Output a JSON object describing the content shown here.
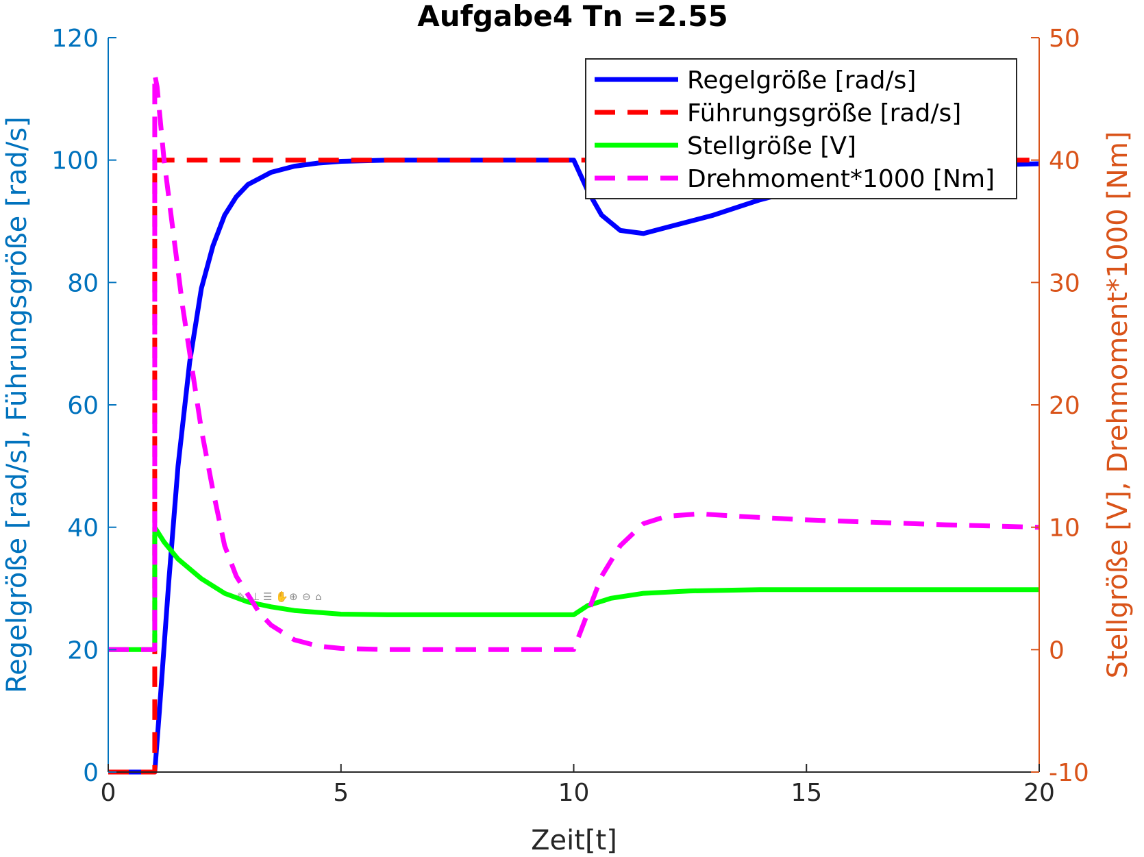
{
  "chart_data": {
    "type": "line",
    "title": "Aufgabe4 Tn =2.55",
    "xlabel": "Zeit[t]",
    "ylabel_left": "Regelgröße [rad/s], Führungsgröße [rad/s]",
    "ylabel_right": "Stellgröße [V], Drehmoment*1000 [Nm]",
    "xlim": [
      0,
      20
    ],
    "ylim_left": [
      0,
      120
    ],
    "ylim_right": [
      -10,
      50
    ],
    "x_ticks": [
      "0",
      "5",
      "10",
      "15",
      "20"
    ],
    "y_ticks_left": [
      "0",
      "20",
      "40",
      "60",
      "80",
      "100",
      "120"
    ],
    "y_ticks_right": [
      "-10",
      "0",
      "10",
      "20",
      "30",
      "40",
      "50"
    ],
    "grid": false,
    "legend_position": "top-right",
    "series": [
      {
        "name": "Regelgröße [rad/s]",
        "axis": "left",
        "color": "#0000FF",
        "style": "solid",
        "x": [
          0,
          1,
          1.1,
          1.3,
          1.5,
          1.75,
          2,
          2.25,
          2.5,
          2.75,
          3,
          3.5,
          4,
          4.5,
          5,
          6,
          7,
          8,
          9,
          10,
          10.3,
          10.6,
          11,
          11.5,
          12,
          13,
          14,
          15,
          16,
          17,
          18,
          19,
          20
        ],
        "y": [
          0,
          0,
          10,
          31,
          50,
          67,
          79,
          86,
          91,
          94,
          96,
          98,
          99,
          99.5,
          99.8,
          100,
          100,
          100,
          100,
          100,
          95,
          91,
          88.5,
          88,
          89,
          91,
          93.5,
          95.5,
          97,
          98,
          98.8,
          99.2,
          99.4
        ]
      },
      {
        "name": "Führungsgröße [rad/s]",
        "axis": "left",
        "color": "#FF0000",
        "style": "dashed",
        "x": [
          0,
          1,
          1,
          20
        ],
        "y": [
          0,
          0,
          100,
          100
        ]
      },
      {
        "name": "Stellgröße [V]",
        "axis": "right",
        "color": "#00FF00",
        "style": "solid",
        "x": [
          0,
          1,
          1,
          1.2,
          1.5,
          2,
          2.5,
          3,
          3.5,
          4,
          5,
          6,
          7,
          8,
          9,
          10,
          10.3,
          10.8,
          11.5,
          12.5,
          14,
          16,
          18,
          20
        ],
        "y": [
          0,
          0,
          10,
          8.8,
          7.4,
          5.8,
          4.6,
          3.9,
          3.5,
          3.2,
          2.9,
          2.85,
          2.85,
          2.85,
          2.85,
          2.85,
          3.6,
          4.2,
          4.6,
          4.8,
          4.9,
          4.9,
          4.9,
          4.9
        ]
      },
      {
        "name": "Drehmoment*1000 [Nm]",
        "axis": "right",
        "color": "#FF00FF",
        "style": "dashed",
        "x": [
          0,
          1,
          1,
          1.05,
          1.2,
          1.4,
          1.6,
          1.8,
          2,
          2.25,
          2.5,
          2.75,
          3,
          3.25,
          3.5,
          4,
          4.5,
          5,
          6,
          7,
          8,
          9,
          10,
          10.3,
          10.6,
          11,
          11.5,
          12,
          12.7,
          13.5,
          15,
          16.5,
          18,
          20
        ],
        "y": [
          0,
          0,
          47,
          46,
          40,
          34,
          28,
          23,
          18,
          13,
          8.5,
          6,
          4.5,
          3,
          2,
          0.8,
          0.3,
          0.1,
          0,
          0,
          0,
          0,
          0,
          3,
          6,
          8.5,
          10.3,
          10.9,
          11.1,
          10.9,
          10.6,
          10.4,
          10.2,
          10
        ]
      }
    ]
  }
}
